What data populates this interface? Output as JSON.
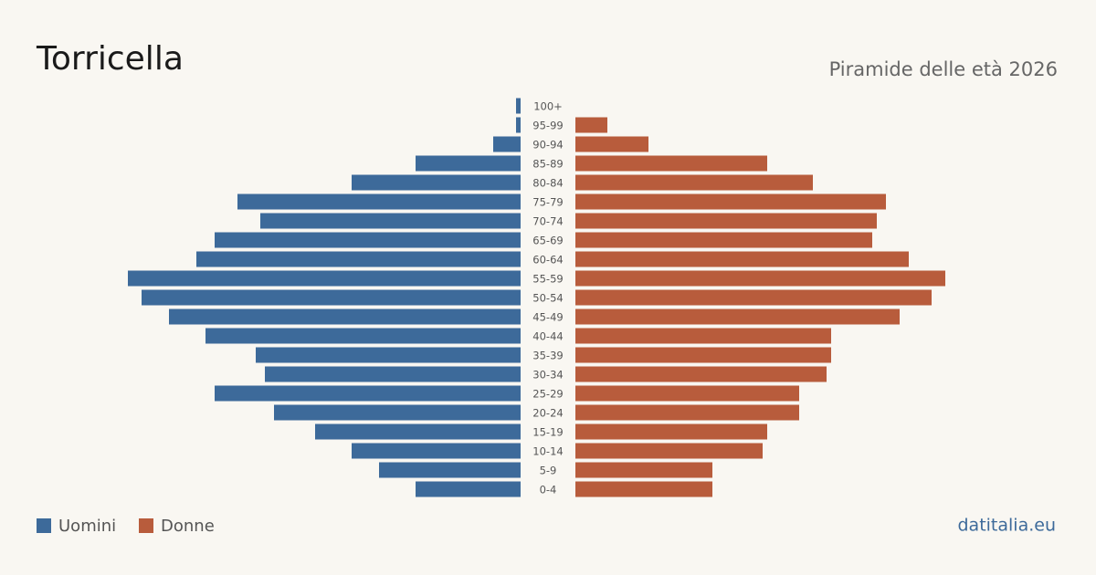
{
  "chart_data": {
    "type": "pyramid",
    "title": "Torricella",
    "subtitle": "Piramide delle età 2026",
    "source": "datitalia.eu",
    "categories": [
      "100+",
      "95-99",
      "90-94",
      "85-89",
      "80-84",
      "75-79",
      "70-74",
      "65-69",
      "60-64",
      "55-59",
      "50-54",
      "45-49",
      "40-44",
      "35-39",
      "30-34",
      "25-29",
      "20-24",
      "15-19",
      "10-14",
      "5-9",
      "0-4"
    ],
    "series": [
      {
        "name": "Uomini",
        "color": "#3d6a9a",
        "values": [
          1,
          1,
          6,
          23,
          37,
          62,
          57,
          67,
          71,
          86,
          83,
          77,
          69,
          58,
          56,
          67,
          54,
          45,
          37,
          31,
          23
        ]
      },
      {
        "name": "Donne",
        "color": "#b85c3c",
        "values": [
          0,
          7,
          16,
          42,
          52,
          68,
          66,
          65,
          73,
          81,
          78,
          71,
          56,
          56,
          55,
          49,
          49,
          42,
          41,
          30,
          30
        ]
      }
    ]
  }
}
